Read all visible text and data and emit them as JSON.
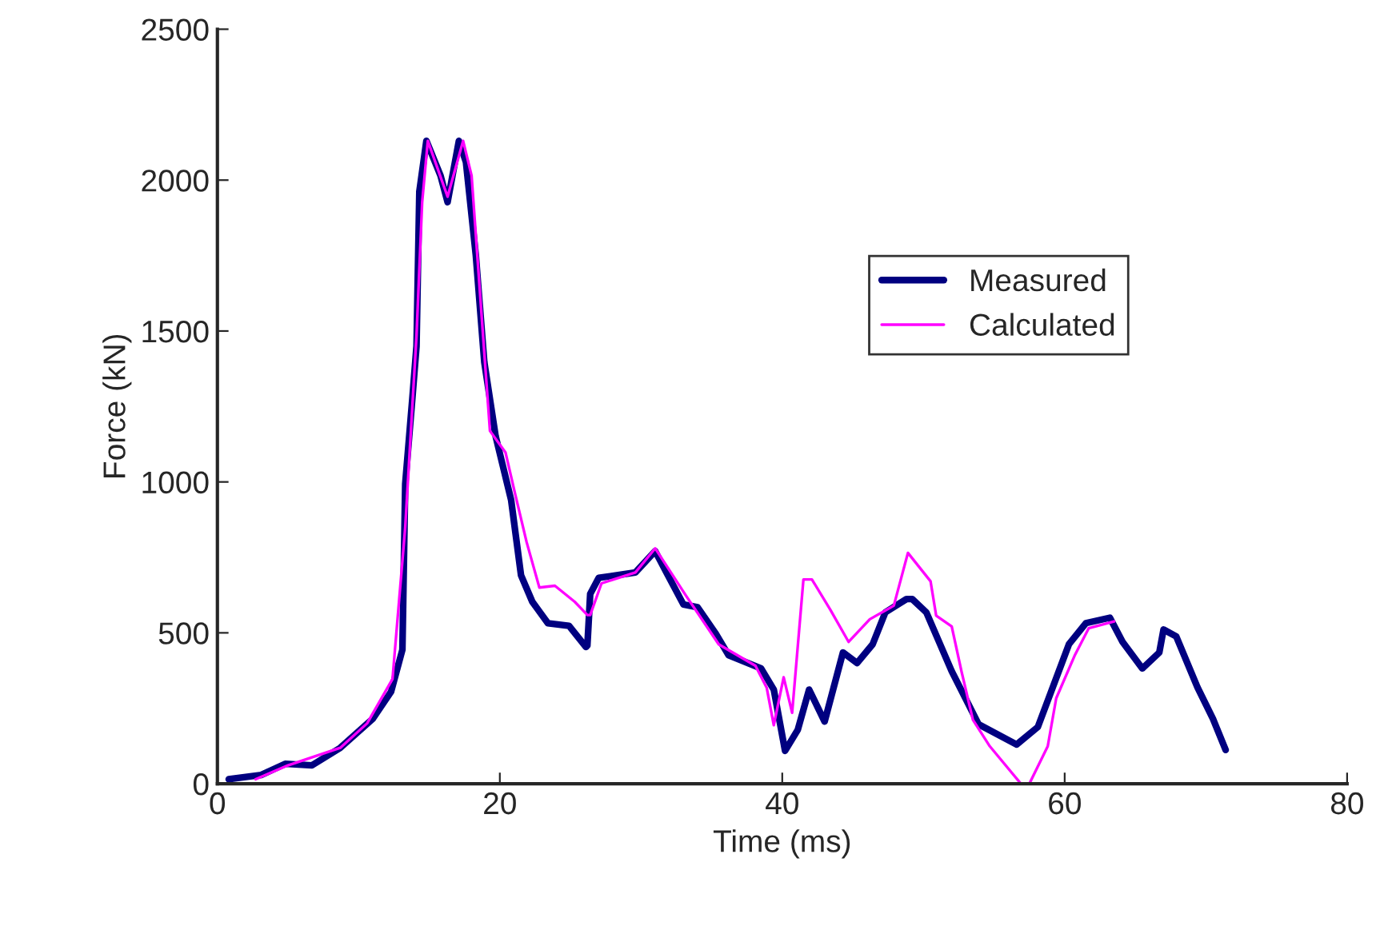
{
  "chart_data": {
    "type": "line",
    "xlabel": "Time (ms)",
    "ylabel": "Force (kN)",
    "xlim": [
      0,
      80
    ],
    "xticks": [
      0,
      20,
      40,
      60,
      80
    ],
    "ylim": [
      0,
      2500
    ],
    "yticks": [
      0,
      500,
      1000,
      1500,
      2000,
      2500
    ],
    "grid": false,
    "legend": "top right",
    "marker": "none",
    "line_style": "solid",
    "series": [
      {
        "name": "Measured",
        "color": "#000080",
        "x": [
          0.8,
          3.1,
          4.8,
          6.7,
          8.7,
          11.0,
          12.3,
          13.1,
          13.3,
          13.8,
          14.1,
          14.3,
          14.8,
          15.8,
          16.3,
          17.1,
          17.6,
          18.3,
          18.9,
          19.7,
          20.8,
          21.5,
          22.3,
          23.4,
          24.9,
          26.1,
          26.2,
          26.4,
          27.0,
          29.6,
          31.0,
          31.9,
          33.0,
          34.0,
          35.3,
          36.2,
          38.5,
          39.4,
          40.2,
          41.1,
          41.9,
          43.0,
          44.3,
          45.3,
          46.4,
          47.3,
          48.8,
          49.2,
          50.2,
          52.0,
          53.9,
          56.6,
          58.1,
          60.3,
          61.5,
          63.2,
          64.1,
          65.5,
          66.7,
          67.0,
          67.9,
          69.4,
          70.5,
          71.4
        ],
        "values": [
          15,
          29,
          66,
          61,
          119,
          215,
          305,
          444,
          993,
          1274,
          1450,
          1962,
          2130,
          2015,
          1927,
          2130,
          2060,
          1751,
          1397,
          1152,
          940,
          691,
          603,
          532,
          523,
          453,
          458,
          629,
          682,
          700,
          771,
          691,
          594,
          585,
          497,
          426,
          382,
          312,
          109,
          179,
          312,
          206,
          435,
          400,
          462,
          568,
          612,
          612,
          568,
          373,
          197,
          130,
          188,
          462,
          532,
          550,
          470,
          382,
          435,
          511,
          488,
          320,
          215,
          112
        ]
      },
      {
        "name": "Calculated",
        "color": "#ff00ff",
        "x": [
          2.7,
          5.0,
          8.7,
          10.6,
          12.4,
          13.3,
          14.1,
          14.5,
          14.9,
          16.3,
          17.4,
          18.0,
          18.7,
          19.3,
          20.4,
          21.1,
          21.9,
          22.8,
          23.9,
          25.3,
          26.2,
          26.4,
          27.2,
          29.6,
          31.0,
          33.2,
          35.5,
          38.1,
          38.9,
          39.4,
          40.1,
          40.7,
          41.5,
          42.1,
          43.4,
          44.7,
          46.2,
          47.9,
          48.9,
          50.5,
          50.9,
          52.0,
          52.7,
          53.5,
          54.7,
          56.9,
          57.5,
          58.8,
          59.4,
          60.7,
          61.7,
          63.5
        ],
        "values": [
          15,
          61,
          119,
          200,
          347,
          850,
          1485,
          1927,
          2130,
          1945,
          2130,
          2015,
          1557,
          1169,
          1098,
          957,
          800,
          650,
          656,
          603,
          559,
          559,
          664,
          700,
          780,
          622,
          462,
          391,
          318,
          194,
          353,
          235,
          677,
          677,
          577,
          470,
          545,
          590,
          765,
          671,
          557,
          521,
          371,
          212,
          124,
          0,
          0,
          124,
          283,
          424,
          515,
          538
        ]
      }
    ]
  }
}
